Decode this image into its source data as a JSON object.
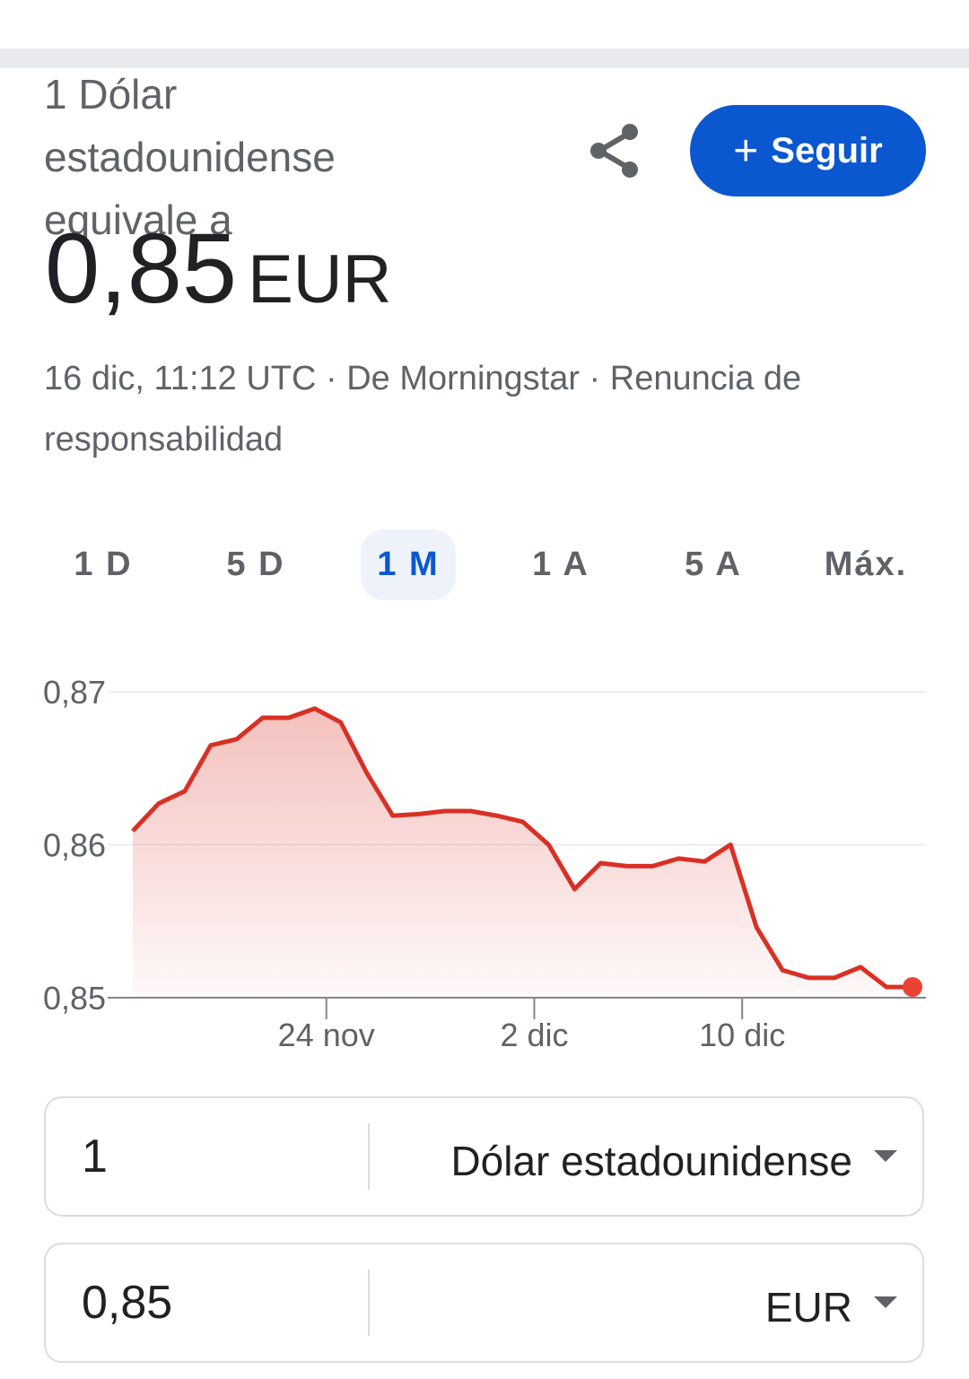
{
  "header": {
    "subtitle": "1 Dólar estadounidense equivale a",
    "value": "0,85",
    "currency": "EUR",
    "share_icon": "share-icon",
    "follow_label": "Seguir",
    "follow_icon": "plus-icon",
    "accent": "#0b57d0"
  },
  "meta": {
    "timestamp": "16 dic, 11:12 UTC",
    "source": "De Morningstar",
    "disclaimer": "Renuncia de responsabilidad"
  },
  "tabs": [
    {
      "label": "1 D"
    },
    {
      "label": "5 D"
    },
    {
      "label": "1 M",
      "active": true
    },
    {
      "label": "1 A"
    },
    {
      "label": "5 A"
    },
    {
      "label": "Máx."
    }
  ],
  "chart_data": {
    "type": "area",
    "color": "#d93025",
    "grid": true,
    "ylim": [
      0.85,
      0.87
    ],
    "y_ticks": [
      "0,87",
      "0,86",
      "0,85"
    ],
    "y_tick_values": [
      0.87,
      0.86,
      0.85
    ],
    "x_ticks": [
      "24 nov",
      "2 dic",
      "10 dic"
    ],
    "x": [
      "16 nov",
      "17 nov",
      "18 nov",
      "19 nov",
      "20 nov",
      "21 nov",
      "22 nov",
      "23 nov",
      "24 nov",
      "25 nov",
      "26 nov",
      "27 nov",
      "28 nov",
      "29 nov",
      "30 nov",
      "1 dic",
      "2 dic",
      "3 dic",
      "4 dic",
      "5 dic",
      "6 dic",
      "7 dic",
      "8 dic",
      "9 dic",
      "10 dic",
      "11 dic",
      "12 dic",
      "13 dic",
      "14 dic",
      "15 dic",
      "16 dic"
    ],
    "values": [
      0.8609,
      0.8627,
      0.8635,
      0.8665,
      0.8669,
      0.8683,
      0.8683,
      0.8689,
      0.868,
      0.8647,
      0.8619,
      0.862,
      0.8622,
      0.8622,
      0.8619,
      0.8615,
      0.86,
      0.8571,
      0.8588,
      0.8586,
      0.8586,
      0.8591,
      0.8589,
      0.86,
      0.8546,
      0.8518,
      0.8513,
      0.8513,
      0.852,
      0.8507,
      0.8507
    ]
  },
  "converter": {
    "from": {
      "amount": "1",
      "currency": "Dólar estadounidense"
    },
    "to": {
      "amount": "0,85",
      "currency": "EUR"
    }
  }
}
